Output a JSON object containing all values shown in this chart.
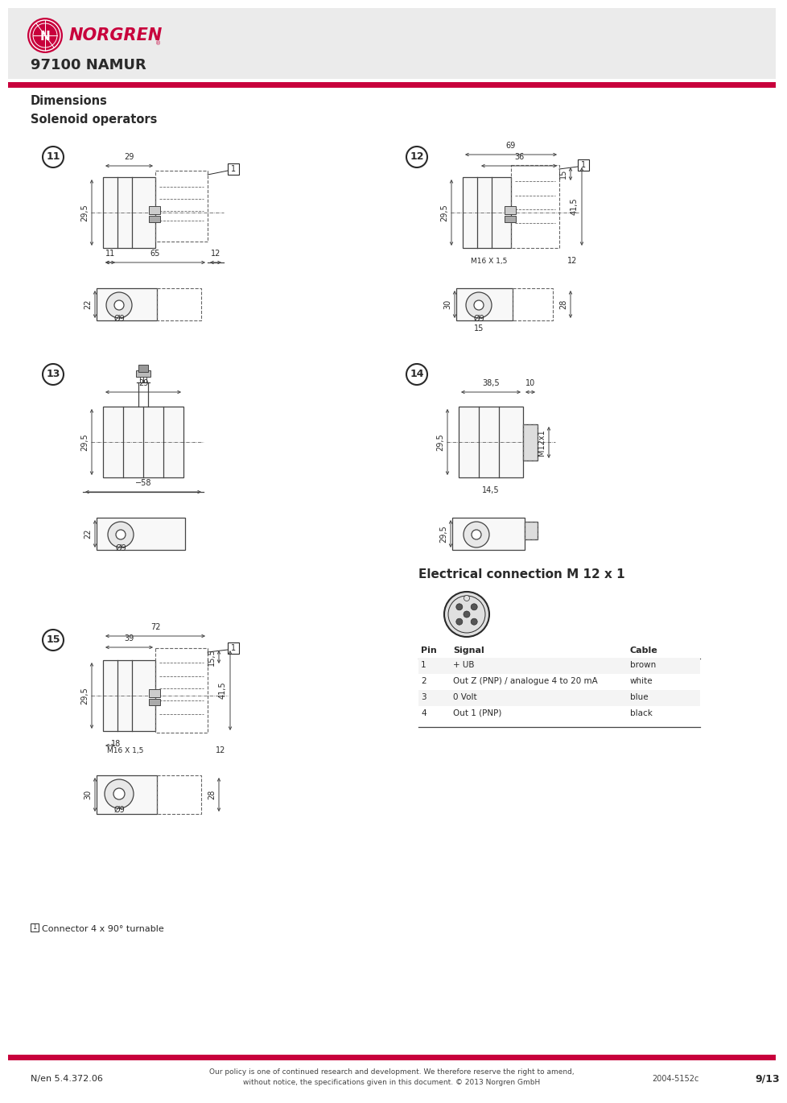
{
  "bg_color": "#ebebeb",
  "white": "#ffffff",
  "red_color": "#c8003c",
  "dark_color": "#2a2a2a",
  "gray_line": "#444444",
  "title": "97100 NAMUR",
  "section_title": "Dimensions",
  "section_subtitle": "Solenoid operators",
  "footer_left": "N/en 5.4.372.06",
  "footer_center": "Our policy is one of continued research and development. We therefore reserve the right to amend,\nwithout notice, the specifications given in this document. © 2013 Norgren GmbH",
  "footer_right": "2004-5152c",
  "footer_page": "9/13",
  "elec_title": "Electrical connection M 12 x 1",
  "pin_headers": [
    "Pin",
    "Signal",
    "Cable"
  ],
  "pin_data": [
    [
      "1",
      "+ UB",
      "brown"
    ],
    [
      "2",
      "Out Z (PNP) / analogue 4 to 20 mA",
      "white"
    ],
    [
      "3",
      "0 Volt",
      "blue"
    ],
    [
      "4",
      "Out 1 (PNP)",
      "black"
    ]
  ],
  "footnote": "¹  Connector 4 x 90° turnable"
}
